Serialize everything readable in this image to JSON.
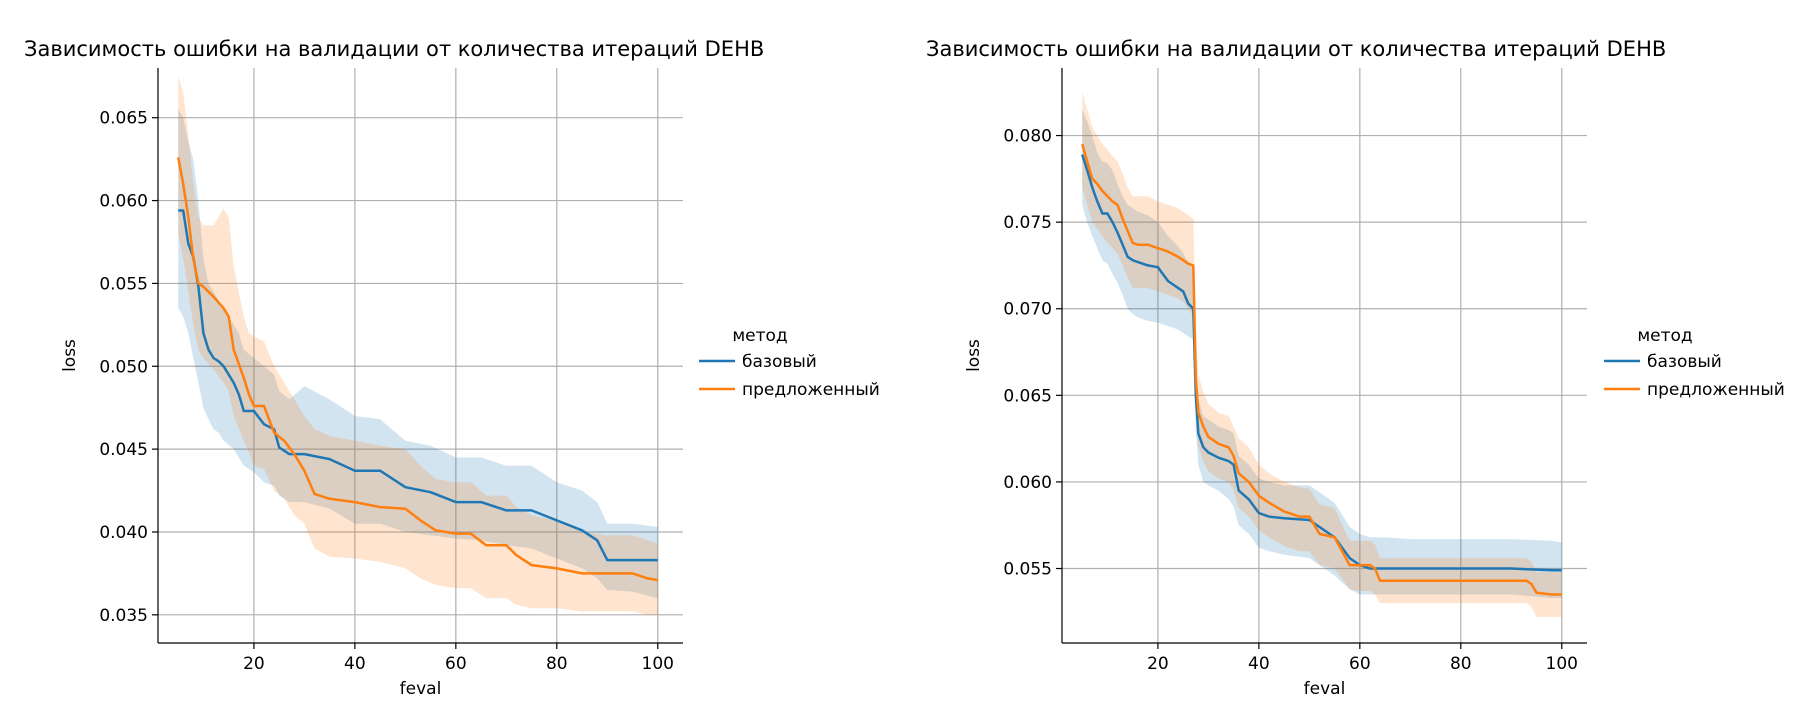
{
  "chart_data": [
    {
      "type": "line",
      "title": "Зависимость ошибки на валидации от количества итераций DEHB",
      "xlabel": "feval",
      "ylabel": "loss",
      "xlim": [
        1,
        105
      ],
      "ylim": [
        0.0333,
        0.068
      ],
      "xticks": [
        20,
        40,
        60,
        80,
        100
      ],
      "xtick_labels": [
        "20",
        "40",
        "60",
        "80",
        "100"
      ],
      "yticks": [
        0.035,
        0.04,
        0.045,
        0.05,
        0.055,
        0.06,
        0.065
      ],
      "ytick_labels": [
        "0.035",
        "0.040",
        "0.045",
        "0.050",
        "0.055",
        "0.060",
        "0.065"
      ],
      "grid": true,
      "legend": {
        "title": "метод",
        "placement": "right"
      },
      "series": [
        {
          "name": "базовый",
          "color": "#1f77b4",
          "band_color": "#1f77b4",
          "x": [
            5,
            6,
            7,
            8,
            9,
            10,
            11,
            12,
            13,
            14,
            16,
            17,
            18,
            20,
            22,
            24,
            25,
            27,
            30,
            35,
            40,
            45,
            50,
            55,
            60,
            65,
            70,
            75,
            80,
            85,
            88,
            90,
            95,
            100
          ],
          "y": [
            0.0594,
            0.0594,
            0.0574,
            0.0566,
            0.0548,
            0.052,
            0.051,
            0.0505,
            0.0503,
            0.05,
            0.049,
            0.0483,
            0.0473,
            0.0473,
            0.0465,
            0.0462,
            0.0451,
            0.0447,
            0.0447,
            0.0444,
            0.0437,
            0.0437,
            0.0427,
            0.0424,
            0.0418,
            0.0418,
            0.0413,
            0.0413,
            0.0407,
            0.0401,
            0.0395,
            0.0383,
            0.0383,
            0.0383
          ],
          "lower": [
            0.0535,
            0.053,
            0.052,
            0.0505,
            0.049,
            0.0475,
            0.0468,
            0.0462,
            0.046,
            0.0455,
            0.045,
            0.0445,
            0.044,
            0.0436,
            0.043,
            0.0428,
            0.0422,
            0.0418,
            0.0418,
            0.0414,
            0.0405,
            0.0405,
            0.04,
            0.0398,
            0.0396,
            0.0395,
            0.0392,
            0.039,
            0.0384,
            0.0378,
            0.0372,
            0.0365,
            0.0364,
            0.036
          ],
          "upper": [
            0.0655,
            0.065,
            0.0635,
            0.0625,
            0.06,
            0.0565,
            0.055,
            0.0545,
            0.054,
            0.0535,
            0.0525,
            0.052,
            0.051,
            0.0505,
            0.05,
            0.0495,
            0.0485,
            0.048,
            0.0488,
            0.048,
            0.047,
            0.0468,
            0.0455,
            0.0452,
            0.0445,
            0.0445,
            0.044,
            0.044,
            0.043,
            0.0425,
            0.0418,
            0.0405,
            0.0405,
            0.0403
          ]
        },
        {
          "name": "предложенный",
          "color": "#ff7f0e",
          "band_color": "#ff7f0e",
          "x": [
            5,
            6,
            7,
            8,
            9,
            10,
            12,
            14,
            15,
            16,
            18,
            19,
            20,
            22,
            24,
            26,
            28,
            30,
            32,
            35,
            40,
            45,
            50,
            53,
            56,
            60,
            63,
            66,
            70,
            72,
            75,
            80,
            85,
            90,
            95,
            98,
            100
          ],
          "y": [
            0.0626,
            0.061,
            0.059,
            0.0565,
            0.055,
            0.0548,
            0.0542,
            0.0535,
            0.053,
            0.051,
            0.0493,
            0.0483,
            0.0476,
            0.0476,
            0.046,
            0.0455,
            0.0447,
            0.0437,
            0.0423,
            0.042,
            0.0418,
            0.0415,
            0.0414,
            0.0407,
            0.0401,
            0.0399,
            0.0399,
            0.0392,
            0.0392,
            0.0386,
            0.038,
            0.0378,
            0.0375,
            0.0375,
            0.0375,
            0.0372,
            0.0371
          ],
          "lower": [
            0.058,
            0.0565,
            0.0545,
            0.0525,
            0.051,
            0.0505,
            0.0498,
            0.049,
            0.0485,
            0.047,
            0.0455,
            0.0448,
            0.044,
            0.0438,
            0.0425,
            0.042,
            0.041,
            0.0405,
            0.039,
            0.0385,
            0.0384,
            0.0382,
            0.0378,
            0.0372,
            0.0368,
            0.0366,
            0.0366,
            0.036,
            0.036,
            0.0356,
            0.0354,
            0.0354,
            0.0352,
            0.0352,
            0.0352,
            0.035,
            0.035
          ],
          "upper": [
            0.0675,
            0.0665,
            0.064,
            0.061,
            0.059,
            0.0585,
            0.0585,
            0.0595,
            0.059,
            0.056,
            0.053,
            0.052,
            0.0518,
            0.0515,
            0.05,
            0.049,
            0.048,
            0.047,
            0.0462,
            0.0458,
            0.0455,
            0.0452,
            0.045,
            0.044,
            0.0432,
            0.043,
            0.043,
            0.0422,
            0.0422,
            0.0415,
            0.041,
            0.0407,
            0.04,
            0.0398,
            0.0398,
            0.0395,
            0.0393
          ]
        }
      ]
    },
    {
      "type": "line",
      "title": "Зависимость ошибки на валидации от количества итераций DEHB",
      "xlabel": "feval",
      "ylabel": "loss",
      "xlim": [
        1,
        105
      ],
      "ylim": [
        0.0507,
        0.0839
      ],
      "xticks": [
        20,
        40,
        60,
        80,
        100
      ],
      "xtick_labels": [
        "20",
        "40",
        "60",
        "80",
        "100"
      ],
      "yticks": [
        0.055,
        0.06,
        0.065,
        0.07,
        0.075,
        0.08
      ],
      "ytick_labels": [
        "0.055",
        "0.060",
        "0.065",
        "0.070",
        "0.075",
        "0.080"
      ],
      "grid": true,
      "legend": {
        "title": "метод",
        "placement": "right"
      },
      "series": [
        {
          "name": "базовый",
          "color": "#1f77b4",
          "band_color": "#1f77b4",
          "x": [
            5,
            6,
            7,
            8,
            9,
            10,
            11,
            12,
            13,
            14,
            15,
            16,
            18,
            20,
            22,
            24,
            25,
            26,
            27,
            27.5,
            28,
            29,
            30,
            32,
            34,
            35,
            36,
            38,
            40,
            42,
            45,
            50,
            55,
            58,
            60,
            62,
            65,
            70,
            80,
            90,
            98,
            100
          ],
          "y": [
            0.0789,
            0.078,
            0.077,
            0.0762,
            0.0755,
            0.0755,
            0.075,
            0.0744,
            0.0737,
            0.073,
            0.0728,
            0.0727,
            0.0725,
            0.0724,
            0.0716,
            0.0712,
            0.071,
            0.0703,
            0.07,
            0.065,
            0.0628,
            0.062,
            0.0617,
            0.0614,
            0.0612,
            0.061,
            0.0595,
            0.059,
            0.0582,
            0.058,
            0.0579,
            0.0578,
            0.0568,
            0.0556,
            0.0552,
            0.055,
            0.055,
            0.055,
            0.055,
            0.055,
            0.0549,
            0.0549
          ],
          "lower": [
            0.076,
            0.075,
            0.0742,
            0.0735,
            0.0728,
            0.0726,
            0.072,
            0.0715,
            0.0708,
            0.07,
            0.0697,
            0.0695,
            0.0693,
            0.0692,
            0.069,
            0.0688,
            0.0686,
            0.0684,
            0.0682,
            0.063,
            0.061,
            0.06,
            0.0598,
            0.0595,
            0.059,
            0.0586,
            0.0575,
            0.057,
            0.0562,
            0.056,
            0.0558,
            0.0556,
            0.0546,
            0.0538,
            0.0535,
            0.0535,
            0.0535,
            0.0535,
            0.0535,
            0.0535,
            0.0533,
            0.0533
          ],
          "upper": [
            0.0815,
            0.0808,
            0.08,
            0.079,
            0.0785,
            0.0784,
            0.078,
            0.0772,
            0.0765,
            0.076,
            0.0758,
            0.0756,
            0.0754,
            0.075,
            0.0742,
            0.0736,
            0.0732,
            0.0727,
            0.0723,
            0.067,
            0.0648,
            0.0638,
            0.0636,
            0.0632,
            0.063,
            0.0628,
            0.0615,
            0.061,
            0.0602,
            0.06,
            0.0598,
            0.0598,
            0.0588,
            0.0574,
            0.057,
            0.0568,
            0.0568,
            0.0567,
            0.0567,
            0.0567,
            0.0566,
            0.0565
          ]
        },
        {
          "name": "предложенный",
          "color": "#ff7f0e",
          "band_color": "#ff7f0e",
          "x": [
            5,
            6,
            7,
            8,
            9,
            10,
            11,
            12,
            13,
            14,
            15,
            16,
            18,
            20,
            22,
            24,
            25,
            26,
            27,
            27.5,
            28,
            29,
            30,
            32,
            34,
            35,
            36,
            38,
            40,
            42,
            45,
            48,
            50,
            52,
            55,
            58,
            60,
            62,
            63,
            64,
            70,
            80,
            90,
            93,
            94,
            95,
            98,
            100
          ],
          "y": [
            0.0795,
            0.0785,
            0.0775,
            0.0772,
            0.0768,
            0.0765,
            0.0762,
            0.076,
            0.0752,
            0.0745,
            0.0738,
            0.0737,
            0.0737,
            0.0735,
            0.0733,
            0.073,
            0.0728,
            0.0726,
            0.0725,
            0.066,
            0.064,
            0.0632,
            0.0626,
            0.0622,
            0.062,
            0.0615,
            0.0605,
            0.06,
            0.0592,
            0.0588,
            0.0583,
            0.058,
            0.058,
            0.057,
            0.0568,
            0.0552,
            0.0552,
            0.0552,
            0.055,
            0.0543,
            0.0543,
            0.0543,
            0.0543,
            0.0543,
            0.0541,
            0.0536,
            0.0535,
            0.0535
          ],
          "lower": [
            0.077,
            0.076,
            0.075,
            0.0746,
            0.0742,
            0.0738,
            0.0735,
            0.0732,
            0.0725,
            0.0718,
            0.0712,
            0.0712,
            0.0712,
            0.071,
            0.0708,
            0.0706,
            0.0704,
            0.07,
            0.0696,
            0.064,
            0.062,
            0.0612,
            0.0606,
            0.0602,
            0.06,
            0.0595,
            0.0585,
            0.058,
            0.0572,
            0.0568,
            0.0563,
            0.056,
            0.056,
            0.0552,
            0.055,
            0.0538,
            0.0537,
            0.0537,
            0.0535,
            0.053,
            0.053,
            0.053,
            0.053,
            0.053,
            0.0528,
            0.0522,
            0.0522,
            0.0522
          ],
          "upper": [
            0.0825,
            0.0815,
            0.0805,
            0.08,
            0.0795,
            0.0792,
            0.0788,
            0.0785,
            0.0778,
            0.077,
            0.0765,
            0.0765,
            0.0765,
            0.0762,
            0.076,
            0.0758,
            0.0756,
            0.0754,
            0.0752,
            0.069,
            0.0662,
            0.0652,
            0.0645,
            0.064,
            0.0638,
            0.0632,
            0.0625,
            0.062,
            0.061,
            0.0605,
            0.06,
            0.0597,
            0.0596,
            0.0587,
            0.0585,
            0.0566,
            0.0566,
            0.0566,
            0.0564,
            0.0556,
            0.0556,
            0.0556,
            0.0556,
            0.0556,
            0.0554,
            0.0548,
            0.0548,
            0.0548
          ]
        }
      ]
    }
  ]
}
